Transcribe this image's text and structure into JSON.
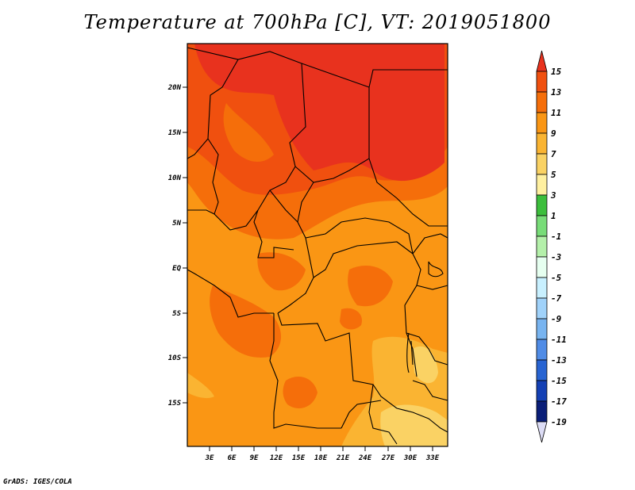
{
  "title": "Temperature at 700hPa [C], VT: 2019051800",
  "credit": "GrADS: IGES/COLA",
  "map": {
    "lon_labels": [
      "3E",
      "6E",
      "9E",
      "12E",
      "15E",
      "18E",
      "21E",
      "24E",
      "27E",
      "30E",
      "33E"
    ],
    "lat_labels": [
      "20N",
      "15N",
      "10N",
      "5N",
      "EQ",
      "5S",
      "10S",
      "15S"
    ]
  },
  "colorbar": {
    "labels": [
      "15",
      "13",
      "11",
      "9",
      "7",
      "5",
      "3",
      "1",
      "-1",
      "-3",
      "-5",
      "-7",
      "-9",
      "-11",
      "-13",
      "-15",
      "-17",
      "-19"
    ],
    "colors": [
      "#e8321e",
      "#f0500f",
      "#f56e0a",
      "#fa9614",
      "#fab432",
      "#fad264",
      "#fff0a0",
      "#3cbe3c",
      "#78dc78",
      "#b4f0aa",
      "#e6fff0",
      "#c8f0ff",
      "#a0d2fa",
      "#78b4f0",
      "#508ce6",
      "#2864d2",
      "#1440b4",
      "#0a1e78",
      "#dcdcf5"
    ]
  },
  "colors": {
    "warm_13": "#e8321e",
    "warm_11": "#f0500f",
    "warm_9": "#f56e0a",
    "warm_7": "#fa9614",
    "warm_5": "#fab432",
    "warm_3": "#fad264"
  }
}
